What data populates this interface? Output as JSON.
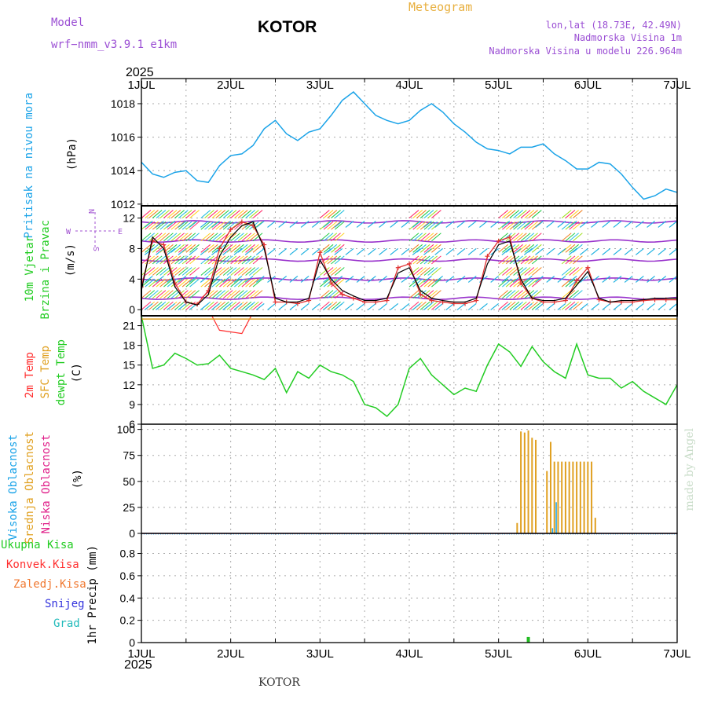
{
  "header": {
    "model_label": "Model",
    "model_name": "wrf−nmm_v3.9.1  e1km",
    "station": "KOTOR",
    "product": "Meteogram",
    "lonlat": "lon,lat (18.73E, 42.49N)",
    "altitude": "Nadmorska Visina 1m",
    "model_altitude": "Nadmorska Visina u modelu 226.964m",
    "year_top": "2025",
    "year_bottom": "2025",
    "footer_station": "KOTOR",
    "credit": "made by Angel"
  },
  "colors": {
    "pressure": "#1aa3e8",
    "temp2m": "#ff3030",
    "sfc_temp": "#e0a020",
    "dewpt": "#22cc22",
    "high_cloud": "#1aa3e8",
    "mid_cloud": "#e0a020",
    "low_cloud": "#e0208a",
    "total_precip": "#22bb22",
    "wind_speed": "#000000",
    "gust": "#e03030",
    "isotach": "#9933cc"
  },
  "chart_data": [
    {
      "type": "line",
      "name": "pressure",
      "ylabel_1": "Pritisak  na  nivou  mora",
      "ylabel_2": "(hPa)",
      "x_day_labels": [
        "1JUL",
        "2JUL",
        "3JUL",
        "4JUL",
        "5JUL",
        "6JUL",
        "7JUL"
      ],
      "yticks": [
        1012,
        1014,
        1016,
        1018
      ],
      "ylim": [
        1011.9,
        1019.5
      ],
      "grid": true,
      "x_hours": [
        0,
        3,
        6,
        9,
        12,
        15,
        18,
        21,
        24,
        27,
        30,
        33,
        36,
        39,
        42,
        45,
        48,
        51,
        54,
        57,
        60,
        63,
        66,
        69,
        72,
        75,
        78,
        81,
        84,
        87,
        90,
        93,
        96,
        99,
        102,
        105,
        108,
        111,
        114,
        117,
        120,
        123,
        126,
        129,
        132,
        135,
        138,
        141,
        144
      ],
      "values": [
        1014.5,
        1013.8,
        1013.6,
        1013.9,
        1014.0,
        1013.4,
        1013.3,
        1014.3,
        1014.9,
        1015.0,
        1015.5,
        1016.5,
        1017.0,
        1016.2,
        1015.8,
        1016.3,
        1016.5,
        1017.3,
        1018.2,
        1018.7,
        1018.0,
        1017.3,
        1017.0,
        1016.8,
        1017.0,
        1017.6,
        1018.0,
        1017.5,
        1016.8,
        1016.3,
        1015.7,
        1015.3,
        1015.2,
        1015.0,
        1015.4,
        1015.4,
        1015.6,
        1015.0,
        1014.6,
        1014.1,
        1014.1,
        1014.5,
        1014.4,
        1013.8,
        1013.0,
        1012.3,
        1012.5,
        1012.9,
        1012.7
      ]
    },
    {
      "type": "line",
      "name": "wind",
      "ylabel_1": "10m  Vjetar",
      "ylabel_2": "Brzina  i  Pravac",
      "ylabel_3": "(m/s)",
      "compass": [
        "N",
        "E",
        "S",
        "W"
      ],
      "yticks": [
        0,
        4,
        8,
        12
      ],
      "ylim": [
        -0.8,
        13.6
      ],
      "x_hours": [
        0,
        3,
        6,
        9,
        12,
        15,
        18,
        21,
        24,
        27,
        30,
        33,
        36,
        39,
        42,
        45,
        48,
        51,
        54,
        57,
        60,
        63,
        66,
        69,
        72,
        75,
        78,
        81,
        84,
        87,
        90,
        93,
        96,
        99,
        102,
        105,
        108,
        111,
        114,
        117,
        120,
        123,
        126,
        129,
        132,
        135,
        138,
        141,
        144
      ],
      "series": [
        {
          "values": [
            2.5,
            9.5,
            8.0,
            3.0,
            1.0,
            0.6,
            2.0,
            7.0,
            9.5,
            11.0,
            11.5,
            8.0,
            1.5,
            1.0,
            1.0,
            1.5,
            6.5,
            4.0,
            2.5,
            1.8,
            1.2,
            1.2,
            1.5,
            4.8,
            5.5,
            2.5,
            1.5,
            1.2,
            1.0,
            1.0,
            1.5,
            6.0,
            8.5,
            9.0,
            4.0,
            1.5,
            1.2,
            1.2,
            1.5,
            3.2,
            5.0,
            1.5,
            1.0,
            1.2,
            1.2,
            1.3,
            1.5,
            1.5,
            1.5
          ]
        },
        {
          "values": [
            3.0,
            9.0,
            8.5,
            3.5,
            1.0,
            0.7,
            2.5,
            8.0,
            10.5,
            11.5,
            11.0,
            8.5,
            1.0,
            1.0,
            0.8,
            1.2,
            7.5,
            3.5,
            2.0,
            1.5,
            1.0,
            1.0,
            1.2,
            5.5,
            6.0,
            2.0,
            1.2,
            1.0,
            0.8,
            0.8,
            1.2,
            7.0,
            9.0,
            9.5,
            3.5,
            1.5,
            1.0,
            1.0,
            1.2,
            3.8,
            5.5,
            1.3,
            1.0,
            1.0,
            1.0,
            1.2,
            1.3,
            1.3,
            1.3
          ]
        }
      ]
    },
    {
      "type": "line",
      "name": "temperature",
      "ylabel_1": "2m  Temp",
      "ylabel_2": "SFC  Temp",
      "ylabel_3": "dewpt  Temp",
      "ylabel_4": "(C)",
      "yticks": [
        6,
        9,
        12,
        15,
        18,
        21
      ],
      "ylim": [
        6,
        22.5
      ],
      "x_hours": [
        0,
        3,
        6,
        9,
        12,
        15,
        18,
        21,
        24,
        27,
        30,
        33,
        36,
        39,
        42,
        45,
        48,
        51,
        54,
        57,
        60,
        63,
        66,
        69,
        72,
        75,
        78,
        81,
        84,
        87,
        90,
        93,
        96,
        99,
        102,
        105,
        108,
        111,
        114,
        117,
        120,
        123,
        126,
        129,
        132,
        135,
        138,
        141,
        144
      ],
      "series": [
        {
          "values": [
            22.5,
            14.5,
            15.0,
            16.8,
            16.0,
            15.0,
            15.2,
            16.5,
            14.5,
            14.0,
            13.5,
            12.8,
            14.5,
            10.8,
            14.0,
            13.0,
            15.0,
            14.0,
            13.5,
            12.5,
            9.0,
            8.5,
            7.2,
            9.0,
            14.5,
            16.0,
            13.5,
            12.0,
            10.5,
            11.5,
            11.0,
            15.0,
            18.2,
            17.0,
            14.8,
            17.8,
            15.5,
            14.0,
            13.0,
            18.2,
            13.5,
            13.0,
            13.0,
            11.5,
            12.5,
            11.0,
            10.0,
            9.0,
            12.0
          ]
        },
        {
          "values": [
            23.2,
            23.5,
            23.5,
            20.3,
            19.8,
            23.0
          ]
        },
        {
          "values": [
            22.0,
            22.0,
            22.0,
            22.0,
            22.0,
            22.0,
            22.0
          ]
        }
      ]
    },
    {
      "type": "bar",
      "name": "cloud",
      "ylabel_1": "Visoka  Oblacnost",
      "ylabel_2": "Srednja  Oblacnost",
      "ylabel_3": "Niska  Oblacnost",
      "ylabel_4": "(%)",
      "yticks": [
        0,
        25,
        50,
        75,
        100
      ],
      "ylim": [
        0,
        105
      ],
      "mid_cloud_x_hours": [
        101,
        102,
        103,
        104,
        105,
        106,
        109,
        110,
        111,
        112,
        113,
        114,
        115,
        116,
        117,
        118,
        119,
        120,
        121,
        122
      ],
      "mid_cloud_values": [
        10,
        98,
        97,
        99,
        92,
        90,
        60,
        88,
        69,
        69,
        69,
        69,
        69,
        69,
        69,
        69,
        69,
        69,
        69,
        15
      ],
      "high_cloud_x_hours": [
        110.5,
        111.5
      ],
      "high_cloud_values": [
        5,
        30
      ],
      "low_cloud_values": [
        0
      ]
    },
    {
      "type": "bar",
      "name": "precip",
      "ylabel_1": "1hr  Precip  (mm)",
      "legend": [
        "Ukupna  Kisa",
        "Konvek.Kisa",
        "Zaledj.Kisa",
        "Snijeg",
        "Grad"
      ],
      "yticks": [
        0,
        0.2,
        0.4,
        0.6,
        0.8
      ],
      "ylim": [
        0,
        0.98
      ],
      "x_hours": [
        104
      ],
      "values": [
        0.05
      ]
    }
  ]
}
